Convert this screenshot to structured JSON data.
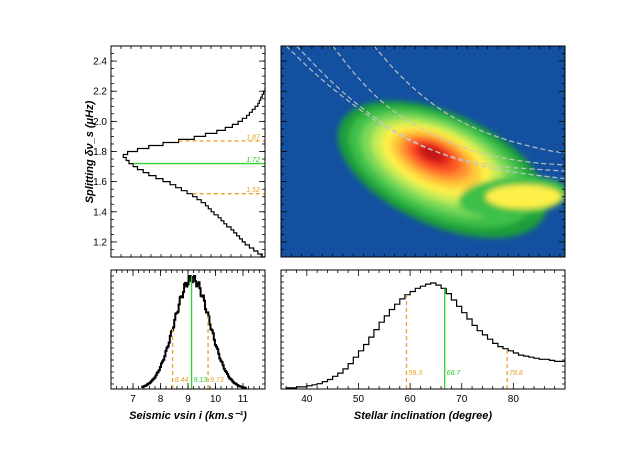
{
  "colors": {
    "median_line": "#2fd52f",
    "bound_line": "#f0a030",
    "histogram": "#000000",
    "map_background": "#1450a0",
    "contour_guides": "#c8c8c8"
  },
  "chart_data": [
    {
      "id": "splitting-histogram",
      "type": "histogram",
      "orientation": "horizontal",
      "title": "",
      "xlabel": "",
      "ylabel": "Splitting δν_s (μHz)",
      "ylim": [
        1.1,
        2.5
      ],
      "yticks": [
        1.2,
        1.4,
        1.6,
        1.8,
        2.0,
        2.2,
        2.4
      ],
      "ytick_labels": [
        "1.2",
        "1.4",
        "1.6",
        "1.8",
        "2.0",
        "2.2",
        "2.4"
      ],
      "bins": {
        "y": [
          1.1,
          1.12,
          1.14,
          1.16,
          1.18,
          1.2,
          1.22,
          1.24,
          1.26,
          1.28,
          1.3,
          1.32,
          1.34,
          1.36,
          1.38,
          1.4,
          1.42,
          1.44,
          1.46,
          1.48,
          1.5,
          1.52,
          1.54,
          1.56,
          1.58,
          1.6,
          1.62,
          1.64,
          1.66,
          1.68,
          1.7,
          1.72,
          1.74,
          1.76,
          1.78,
          1.8,
          1.82,
          1.84,
          1.86,
          1.88,
          1.9,
          1.92,
          1.94,
          1.96,
          1.98,
          2.0,
          2.02,
          2.04,
          2.06,
          2.08,
          2.1,
          2.12,
          2.14,
          2.16,
          2.18,
          2.2
        ],
        "count": [
          0.02,
          0.05,
          0.08,
          0.11,
          0.14,
          0.16,
          0.18,
          0.2,
          0.22,
          0.24,
          0.27,
          0.29,
          0.31,
          0.33,
          0.36,
          0.38,
          0.4,
          0.42,
          0.45,
          0.48,
          0.51,
          0.55,
          0.59,
          0.63,
          0.67,
          0.72,
          0.77,
          0.82,
          0.86,
          0.9,
          0.93,
          0.96,
          0.98,
          1.0,
          0.97,
          0.9,
          0.82,
          0.72,
          0.61,
          0.5,
          0.42,
          0.34,
          0.28,
          0.23,
          0.19,
          0.16,
          0.13,
          0.11,
          0.09,
          0.07,
          0.05,
          0.04,
          0.03,
          0.02,
          0.01,
          0.0
        ]
      },
      "median": 1.72,
      "lower_bound": 1.52,
      "upper_bound": 1.87,
      "annotations": [
        "1.87",
        "1.72",
        "1.52"
      ]
    },
    {
      "id": "joint-map",
      "type": "heatmap",
      "title": "",
      "xlabel": "",
      "ylabel": "",
      "xlim": [
        35,
        90
      ],
      "ylim": [
        1.1,
        2.5
      ],
      "peak": {
        "x": 64,
        "y": 1.8
      },
      "guide_curves": [
        {
          "name": "",
          "points": [
            [
              38,
              2.5
            ],
            [
              45,
              2.25
            ],
            [
              52,
              2.05
            ],
            [
              60,
              1.87
            ],
            [
              70,
              1.73
            ],
            [
              80,
              1.66
            ],
            [
              90,
              1.62
            ]
          ]
        },
        {
          "name": "",
          "points": [
            [
              36,
              2.5
            ],
            [
              42,
              2.3
            ],
            [
              50,
              2.08
            ],
            [
              58,
              1.9
            ],
            [
              66,
              1.78
            ],
            [
              76,
              1.7
            ],
            [
              90,
              1.67
            ]
          ]
        },
        {
          "name": "",
          "points": [
            [
              45,
              2.5
            ],
            [
              50,
              2.28
            ],
            [
              56,
              2.08
            ],
            [
              63,
              1.93
            ],
            [
              72,
              1.8
            ],
            [
              82,
              1.73
            ],
            [
              90,
              1.71
            ]
          ]
        },
        {
          "name": "",
          "points": [
            [
              53,
              2.5
            ],
            [
              58,
              2.3
            ],
            [
              64,
              2.12
            ],
            [
              70,
              1.99
            ],
            [
              78,
              1.88
            ],
            [
              86,
              1.81
            ],
            [
              90,
              1.79
            ]
          ]
        }
      ]
    },
    {
      "id": "vsini-histogram",
      "type": "histogram",
      "title": "",
      "xlabel": "Seismic vsin i (km.s⁻¹)",
      "ylabel": "",
      "xlim": [
        6.2,
        11.8
      ],
      "xticks": [
        7,
        8,
        9,
        10,
        11
      ],
      "xtick_labels": [
        "7",
        "8",
        "9",
        "10",
        "11"
      ],
      "median": 9.13,
      "lower_bound": 8.44,
      "upper_bound": 9.73,
      "annotations": [
        "8.44",
        "9.13",
        "9.73"
      ],
      "gaussian": {
        "mean": 9.13,
        "sigma": 0.64
      }
    },
    {
      "id": "inclination-histogram",
      "type": "histogram",
      "title": "",
      "xlabel": "Stellar inclination (degree)",
      "ylabel": "",
      "xlim": [
        35,
        90
      ],
      "xticks": [
        40,
        50,
        60,
        70,
        80
      ],
      "xtick_labels": [
        "40",
        "50",
        "60",
        "70",
        "80"
      ],
      "bins": {
        "x": [
          36,
          37,
          38,
          39,
          40,
          41,
          42,
          43,
          44,
          45,
          46,
          47,
          48,
          49,
          50,
          51,
          52,
          53,
          54,
          55,
          56,
          57,
          58,
          59,
          60,
          61,
          62,
          63,
          64,
          65,
          66,
          67,
          68,
          69,
          70,
          71,
          72,
          73,
          74,
          75,
          76,
          77,
          78,
          79,
          80,
          81,
          82,
          83,
          84,
          85,
          86,
          87,
          88,
          89
        ],
        "count": [
          0.01,
          0.01,
          0.02,
          0.02,
          0.03,
          0.04,
          0.05,
          0.07,
          0.09,
          0.12,
          0.15,
          0.19,
          0.24,
          0.3,
          0.36,
          0.42,
          0.49,
          0.56,
          0.63,
          0.69,
          0.75,
          0.8,
          0.85,
          0.89,
          0.92,
          0.95,
          0.97,
          0.99,
          1.0,
          0.98,
          0.95,
          0.9,
          0.84,
          0.78,
          0.72,
          0.66,
          0.6,
          0.55,
          0.51,
          0.47,
          0.43,
          0.4,
          0.38,
          0.36,
          0.34,
          0.32,
          0.31,
          0.3,
          0.29,
          0.28,
          0.28,
          0.27,
          0.26,
          0.26
        ]
      },
      "median": 66.7,
      "lower_bound": 59.3,
      "upper_bound": 78.8,
      "annotations": [
        "59.3",
        "66.7",
        "78.8"
      ]
    }
  ]
}
